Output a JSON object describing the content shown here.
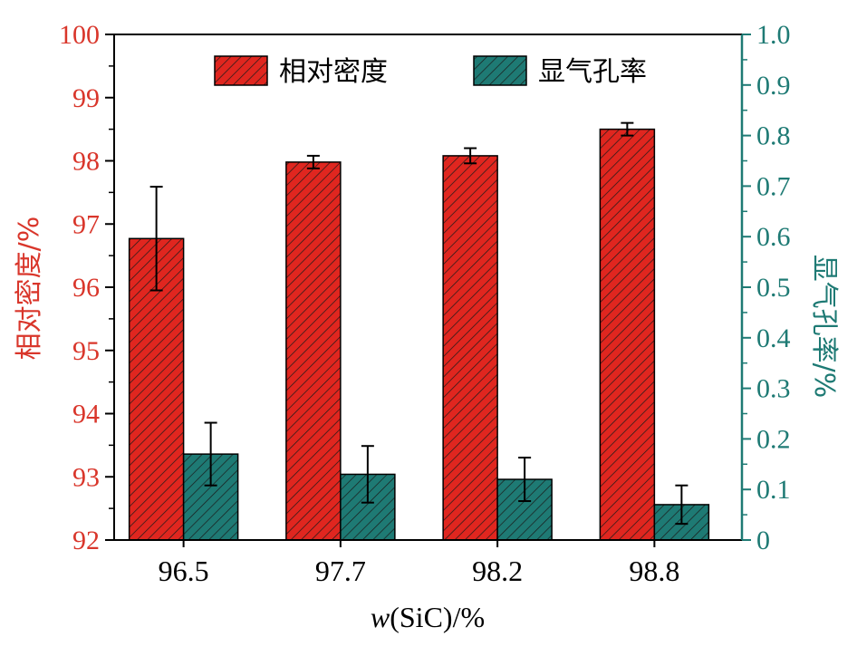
{
  "chart_data": {
    "type": "bar",
    "categories": [
      "96.5",
      "97.7",
      "98.2",
      "98.8"
    ],
    "xlabel_var": "w",
    "xlabel_rest": "(SiC)/%",
    "series": [
      {
        "name": "相对密度",
        "axis": "left",
        "values": [
          96.77,
          97.98,
          98.08,
          98.5
        ],
        "error": [
          0.82,
          0.1,
          0.12,
          0.1
        ],
        "color": "#e0261f"
      },
      {
        "name": "显气孔率",
        "axis": "right",
        "values": [
          0.17,
          0.13,
          0.12,
          0.07
        ],
        "error": [
          0.062,
          0.056,
          0.043,
          0.038
        ],
        "color": "#1e7a74"
      }
    ],
    "ylabel_left": "相对密度/%",
    "ylabel_right": "显气孔率/%",
    "ylim_left": [
      92,
      100
    ],
    "ylim_right": [
      0,
      1.0
    ],
    "yticks_left": [
      "92",
      "93",
      "94",
      "95",
      "96",
      "97",
      "98",
      "99",
      "100"
    ],
    "yticks_right": [
      "0",
      "0.1",
      "0.2",
      "0.3",
      "0.4",
      "0.5",
      "0.6",
      "0.7",
      "0.8",
      "0.9",
      "1.0"
    ],
    "left_axis_color": "#d9362b",
    "right_axis_color": "#1e7a74",
    "legend_position": "top",
    "grid": false,
    "hatch": "diagonal"
  }
}
